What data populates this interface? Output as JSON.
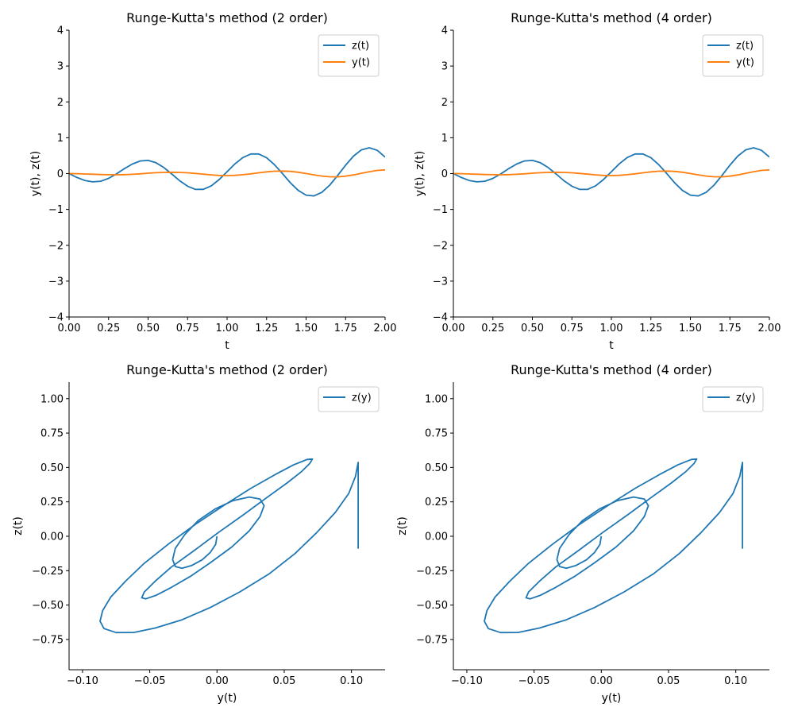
{
  "colors": {
    "z": "#1f77b4",
    "y": "#ff7f0e"
  },
  "chart_data": [
    {
      "type": "line",
      "title": "Runge-Kutta's method (2 order)",
      "xlabel": "t",
      "ylabel": "y(t), z(t)",
      "xlim": [
        0,
        2
      ],
      "ylim": [
        -4,
        4
      ],
      "xticks": [
        "0.00",
        "0.25",
        "0.50",
        "0.75",
        "1.00",
        "1.25",
        "1.50",
        "1.75",
        "2.00"
      ],
      "yticks": [
        "−4",
        "−3",
        "−2",
        "−1",
        "0",
        "1",
        "2",
        "3",
        "4"
      ],
      "legend": "top-right",
      "series": [
        {
          "name": "z(t)",
          "color": "#1f77b4",
          "x": [
            0,
            0.05,
            0.1,
            0.15,
            0.2,
            0.25,
            0.3,
            0.35,
            0.4,
            0.45,
            0.5,
            0.55,
            0.6,
            0.65,
            0.7,
            0.75,
            0.8,
            0.85,
            0.9,
            0.95,
            1.0,
            1.05,
            1.1,
            1.15,
            1.2,
            1.25,
            1.3,
            1.35,
            1.4,
            1.45,
            1.5,
            1.55,
            1.6,
            1.65,
            1.7,
            1.75,
            1.8,
            1.85,
            1.9,
            1.95,
            2.0
          ],
          "y": [
            0,
            -0.108,
            -0.192,
            -0.231,
            -0.213,
            -0.134,
            -0.008,
            0.137,
            0.267,
            0.352,
            0.368,
            0.304,
            0.168,
            -0.012,
            -0.199,
            -0.353,
            -0.44,
            -0.438,
            -0.342,
            -0.167,
            0.053,
            0.272,
            0.448,
            0.548,
            0.547,
            0.442,
            0.249,
            0.003,
            -0.254,
            -0.469,
            -0.601,
            -0.622,
            -0.524,
            -0.322,
            -0.05,
            0.236,
            0.488,
            0.663,
            0.721,
            0.65,
            0.461
          ]
        },
        {
          "name": "y(t)",
          "color": "#ff7f0e",
          "x": [
            0,
            0.05,
            0.1,
            0.15,
            0.2,
            0.25,
            0.3,
            0.35,
            0.4,
            0.45,
            0.5,
            0.55,
            0.6,
            0.65,
            0.7,
            0.75,
            0.8,
            0.85,
            0.9,
            0.95,
            1.0,
            1.05,
            1.1,
            1.15,
            1.2,
            1.25,
            1.3,
            1.35,
            1.4,
            1.45,
            1.5,
            1.55,
            1.6,
            1.65,
            1.7,
            1.75,
            1.8,
            1.85,
            1.9,
            1.95,
            2.0
          ],
          "y": [
            0,
            -0.003,
            -0.01,
            -0.018,
            -0.027,
            -0.032,
            -0.033,
            -0.029,
            -0.019,
            -0.006,
            0.01,
            0.024,
            0.034,
            0.038,
            0.034,
            0.022,
            0.005,
            -0.016,
            -0.036,
            -0.05,
            -0.055,
            -0.049,
            -0.031,
            -0.006,
            0.023,
            0.049,
            0.067,
            0.072,
            0.062,
            0.037,
            0.003,
            -0.035,
            -0.068,
            -0.088,
            -0.09,
            -0.072,
            -0.037,
            0.009,
            0.054,
            0.089,
            0.105
          ]
        }
      ]
    },
    {
      "type": "line",
      "title": "Runge-Kutta's method (4 order)",
      "xlabel": "t",
      "ylabel": "y(t), z(t)",
      "xlim": [
        0,
        2
      ],
      "ylim": [
        -4,
        4
      ],
      "xticks": [
        "0.00",
        "0.25",
        "0.50",
        "0.75",
        "1.00",
        "1.25",
        "1.50",
        "1.75",
        "2.00"
      ],
      "yticks": [
        "−4",
        "−3",
        "−2",
        "−1",
        "0",
        "1",
        "2",
        "3",
        "4"
      ],
      "legend": "top-right",
      "series": [
        {
          "name": "z(t)",
          "color": "#1f77b4",
          "x": [
            0,
            0.05,
            0.1,
            0.15,
            0.2,
            0.25,
            0.3,
            0.35,
            0.4,
            0.45,
            0.5,
            0.55,
            0.6,
            0.65,
            0.7,
            0.75,
            0.8,
            0.85,
            0.9,
            0.95,
            1.0,
            1.05,
            1.1,
            1.15,
            1.2,
            1.25,
            1.3,
            1.35,
            1.4,
            1.45,
            1.5,
            1.55,
            1.6,
            1.65,
            1.7,
            1.75,
            1.8,
            1.85,
            1.9,
            1.95,
            2.0
          ],
          "y": [
            0,
            -0.108,
            -0.192,
            -0.231,
            -0.213,
            -0.134,
            -0.008,
            0.137,
            0.267,
            0.352,
            0.368,
            0.304,
            0.168,
            -0.012,
            -0.199,
            -0.353,
            -0.44,
            -0.438,
            -0.342,
            -0.167,
            0.053,
            0.272,
            0.448,
            0.548,
            0.547,
            0.442,
            0.249,
            0.003,
            -0.254,
            -0.469,
            -0.601,
            -0.622,
            -0.524,
            -0.322,
            -0.05,
            0.236,
            0.488,
            0.663,
            0.721,
            0.65,
            0.461
          ]
        },
        {
          "name": "y(t)",
          "color": "#ff7f0e",
          "x": [
            0,
            0.05,
            0.1,
            0.15,
            0.2,
            0.25,
            0.3,
            0.35,
            0.4,
            0.45,
            0.5,
            0.55,
            0.6,
            0.65,
            0.7,
            0.75,
            0.8,
            0.85,
            0.9,
            0.95,
            1.0,
            1.05,
            1.1,
            1.15,
            1.2,
            1.25,
            1.3,
            1.35,
            1.4,
            1.45,
            1.5,
            1.55,
            1.6,
            1.65,
            1.7,
            1.75,
            1.8,
            1.85,
            1.9,
            1.95,
            2.0
          ],
          "y": [
            0,
            -0.003,
            -0.01,
            -0.018,
            -0.027,
            -0.032,
            -0.033,
            -0.029,
            -0.019,
            -0.006,
            0.01,
            0.024,
            0.034,
            0.038,
            0.034,
            0.022,
            0.005,
            -0.016,
            -0.036,
            -0.05,
            -0.055,
            -0.049,
            -0.031,
            -0.006,
            0.023,
            0.049,
            0.067,
            0.072,
            0.062,
            0.037,
            0.003,
            -0.035,
            -0.068,
            -0.088,
            -0.09,
            -0.072,
            -0.037,
            0.009,
            0.054,
            0.089,
            0.105
          ]
        }
      ]
    },
    {
      "type": "line",
      "title": "Runge-Kutta's method (2 order)",
      "xlabel": "y(t)",
      "ylabel": "z(t)",
      "xlim": [
        -0.11,
        0.125
      ],
      "ylim": [
        -0.97,
        1.12
      ],
      "xticks": [
        "−0.10",
        "−0.05",
        "0.00",
        "0.05",
        "0.10"
      ],
      "xtick_values": [
        -0.1,
        -0.05,
        0,
        0.05,
        0.1
      ],
      "yticks": [
        "−0.75",
        "−0.50",
        "−0.25",
        "0.00",
        "0.25",
        "0.50",
        "0.75",
        "1.00"
      ],
      "ytick_values": [
        -0.75,
        -0.5,
        -0.25,
        0,
        0.25,
        0.5,
        0.75,
        1.0
      ],
      "legend": "top-right",
      "series": [
        {
          "name": "z(y)",
          "color": "#1f77b4",
          "x": [
            0,
            -0.001,
            -0.005,
            -0.011,
            -0.019,
            -0.026,
            -0.031,
            -0.033,
            -0.031,
            -0.024,
            -0.014,
            -0.001,
            0.012,
            0.024,
            0.032,
            0.035,
            0.032,
            0.024,
            0.011,
            -0.005,
            -0.02,
            -0.034,
            -0.045,
            -0.053,
            -0.056,
            -0.054,
            -0.046,
            -0.034,
            -0.017,
            0.001,
            0.02,
            0.037,
            0.052,
            0.063,
            0.069,
            0.071,
            0.067,
            0.057,
            0.043,
            0.025,
            0.005,
            -0.016,
            -0.036,
            -0.054,
            -0.068,
            -0.079,
            -0.085,
            -0.087,
            -0.084,
            -0.075,
            -0.062,
            -0.046,
            -0.026,
            -0.005,
            0.017,
            0.039,
            0.058,
            0.074,
            0.088,
            0.098,
            0.103,
            0.105,
            0.105
          ],
          "y": [
            0,
            -0.059,
            -0.118,
            -0.171,
            -0.213,
            -0.232,
            -0.22,
            -0.17,
            -0.088,
            0.012,
            0.114,
            0.2,
            0.259,
            0.285,
            0.271,
            0.222,
            0.143,
            0.039,
            -0.078,
            -0.193,
            -0.293,
            -0.372,
            -0.428,
            -0.455,
            -0.447,
            -0.404,
            -0.327,
            -0.224,
            -0.104,
            0.027,
            0.159,
            0.281,
            0.387,
            0.471,
            0.53,
            0.561,
            0.558,
            0.519,
            0.447,
            0.347,
            0.224,
            0.087,
            -0.056,
            -0.196,
            -0.326,
            -0.442,
            -0.54,
            -0.617,
            -0.671,
            -0.7,
            -0.699,
            -0.667,
            -0.607,
            -0.518,
            -0.404,
            -0.272,
            -0.126,
            0.025,
            0.173,
            0.312,
            0.435,
            0.537,
            -0.09
          ]
        }
      ]
    },
    {
      "type": "line",
      "title": "Runge-Kutta's method (4 order)",
      "xlabel": "y(t)",
      "ylabel": "z(t)",
      "xlim": [
        -0.11,
        0.125
      ],
      "ylim": [
        -0.97,
        1.12
      ],
      "xticks": [
        "−0.10",
        "−0.05",
        "0.00",
        "0.05",
        "0.10"
      ],
      "xtick_values": [
        -0.1,
        -0.05,
        0,
        0.05,
        0.1
      ],
      "yticks": [
        "−0.75",
        "−0.50",
        "−0.25",
        "0.00",
        "0.25",
        "0.50",
        "0.75",
        "1.00"
      ],
      "ytick_values": [
        -0.75,
        -0.5,
        -0.25,
        0,
        0.25,
        0.5,
        0.75,
        1.0
      ],
      "legend": "top-right",
      "series": [
        {
          "name": "z(y)",
          "color": "#1f77b4",
          "x": [
            0,
            -0.001,
            -0.005,
            -0.011,
            -0.019,
            -0.026,
            -0.031,
            -0.033,
            -0.031,
            -0.024,
            -0.014,
            -0.001,
            0.012,
            0.024,
            0.032,
            0.035,
            0.032,
            0.024,
            0.011,
            -0.005,
            -0.02,
            -0.034,
            -0.045,
            -0.053,
            -0.056,
            -0.054,
            -0.046,
            -0.034,
            -0.017,
            0.001,
            0.02,
            0.037,
            0.052,
            0.063,
            0.069,
            0.071,
            0.067,
            0.057,
            0.043,
            0.025,
            0.005,
            -0.016,
            -0.036,
            -0.054,
            -0.068,
            -0.079,
            -0.085,
            -0.087,
            -0.084,
            -0.075,
            -0.062,
            -0.046,
            -0.026,
            -0.005,
            0.017,
            0.039,
            0.058,
            0.074,
            0.088,
            0.098,
            0.103,
            0.105,
            0.105
          ],
          "y": [
            0,
            -0.059,
            -0.118,
            -0.171,
            -0.213,
            -0.232,
            -0.22,
            -0.17,
            -0.088,
            0.012,
            0.114,
            0.2,
            0.259,
            0.285,
            0.271,
            0.222,
            0.143,
            0.039,
            -0.078,
            -0.193,
            -0.293,
            -0.372,
            -0.428,
            -0.455,
            -0.447,
            -0.404,
            -0.327,
            -0.224,
            -0.104,
            0.027,
            0.159,
            0.281,
            0.387,
            0.471,
            0.53,
            0.561,
            0.558,
            0.519,
            0.447,
            0.347,
            0.224,
            0.087,
            -0.056,
            -0.196,
            -0.326,
            -0.442,
            -0.54,
            -0.617,
            -0.671,
            -0.7,
            -0.699,
            -0.667,
            -0.607,
            -0.518,
            -0.404,
            -0.272,
            -0.126,
            0.025,
            0.173,
            0.312,
            0.435,
            0.537,
            -0.09
          ]
        }
      ]
    }
  ]
}
